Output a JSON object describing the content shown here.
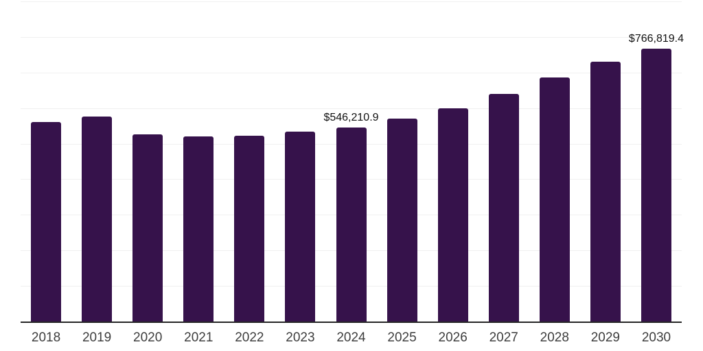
{
  "chart_data": {
    "type": "bar",
    "title": "",
    "xlabel": "",
    "ylabel": "",
    "categories": [
      "2018",
      "2019",
      "2020",
      "2021",
      "2022",
      "2023",
      "2024",
      "2025",
      "2026",
      "2027",
      "2028",
      "2029",
      "2030"
    ],
    "values": [
      560000,
      576000,
      527000,
      520000,
      523000,
      533000,
      546210.9,
      570000,
      600000,
      639000,
      686000,
      731000,
      766819.4
    ],
    "data_labels": [
      {
        "category": "2024",
        "text": "$546,210.9"
      },
      {
        "category": "2030",
        "text": "$766,819.4"
      }
    ],
    "ylim": [
      0,
      900000
    ],
    "gridline_step": 100000,
    "grid": "horizontal-only",
    "legend": "none",
    "colors": {
      "bar": "#36124B",
      "axis_line": "#262626",
      "gridline": "#f0f0f0",
      "x_label_text": "#3d3d3d",
      "data_label_text": "#111111",
      "background": "#ffffff"
    }
  }
}
